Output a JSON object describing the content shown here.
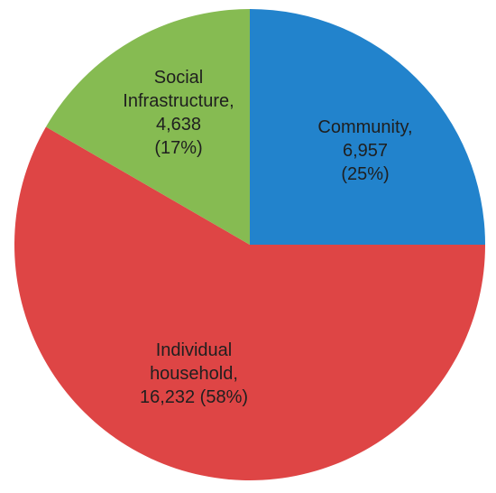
{
  "chart_data": {
    "type": "pie",
    "title": "",
    "legend": "none",
    "start_angle_deg": 0,
    "direction": "clockwise",
    "slices": [
      {
        "name": "Community",
        "value": 6957,
        "percent": 25,
        "color": "#2283CC",
        "label_lines": [
          "Community,",
          "6,957",
          "(25%)"
        ]
      },
      {
        "name": "Individual household",
        "value": 16232,
        "percent": 58,
        "color": "#DE4545",
        "label_lines": [
          "Individual",
          "household,",
          "16,232 (58%)"
        ]
      },
      {
        "name": "Social Infrastructure",
        "value": 4638,
        "percent": 17,
        "color": "#86BB52",
        "label_lines": [
          "Social",
          "Infrastructure,",
          "4,638",
          "(17%)"
        ]
      }
    ]
  }
}
